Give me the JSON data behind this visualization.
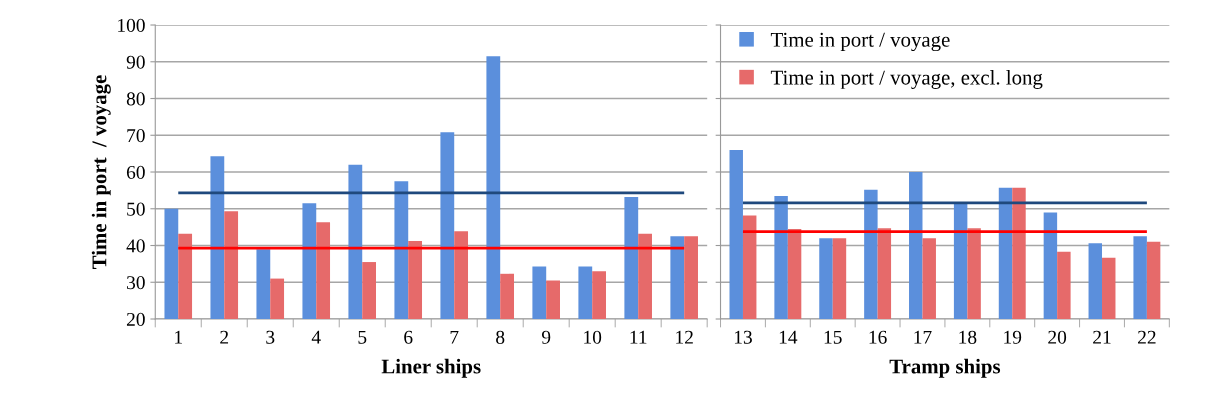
{
  "chart_data": [
    {
      "type": "bar",
      "xlabel": "Liner ships",
      "ylabel": "Time in port  / voyage",
      "categories": [
        "1",
        "2",
        "3",
        "4",
        "5",
        "6",
        "7",
        "8",
        "9",
        "10",
        "11",
        "12"
      ],
      "series": [
        {
          "color": "#5b8fdc",
          "values": [
            50,
            64.3,
            39,
            51.5,
            62,
            57.5,
            70.8,
            91.5,
            34.3,
            34.3,
            53.2,
            42.5
          ]
        },
        {
          "color": "#e66a6a",
          "values": [
            43.2,
            49.3,
            31,
            46.3,
            35.5,
            41.2,
            43.9,
            32.3,
            30.5,
            33,
            43.2,
            42.5
          ]
        }
      ],
      "ref_lines": [
        {
          "axis": "y",
          "value": 54.3,
          "color": "#1f497d"
        },
        {
          "axis": "y",
          "value": 39.3,
          "color": "#ff0000"
        }
      ],
      "ylim": [
        20,
        100
      ],
      "yticks": [
        20,
        30,
        40,
        50,
        60,
        70,
        80,
        90,
        100
      ],
      "grid": "y"
    },
    {
      "type": "bar",
      "xlabel": "Tramp ships",
      "categories": [
        "13",
        "14",
        "15",
        "16",
        "17",
        "18",
        "19",
        "20",
        "21",
        "22"
      ],
      "series": [
        {
          "name": "Time in port / voyage",
          "color": "#5b8fdc",
          "values": [
            66,
            53.5,
            42,
            55.2,
            60,
            51.5,
            55.7,
            49,
            40.6,
            42.5
          ]
        },
        {
          "name": "Time in port / voyage, excl. long",
          "color": "#e66a6a",
          "values": [
            48.2,
            44.5,
            42,
            44.7,
            42,
            44.7,
            55.7,
            38.3,
            36.7,
            41
          ]
        }
      ],
      "ref_lines": [
        {
          "axis": "y",
          "value": 51.6,
          "color": "#1f497d"
        },
        {
          "axis": "y",
          "value": 43.8,
          "color": "#ff0000"
        }
      ],
      "ylim": [
        20,
        100
      ],
      "yticks": [
        20,
        30,
        40,
        50,
        60,
        70,
        80,
        90,
        100
      ],
      "grid": "y",
      "legend": "top left",
      "tick_labels": "x"
    }
  ]
}
